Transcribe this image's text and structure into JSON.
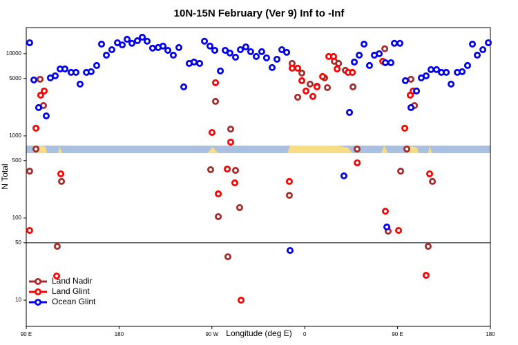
{
  "chart_data": {
    "type": "scatter",
    "title": "10N-15N February (Ver 9)   Inf to -Inf",
    "x_label": "Longitude (deg E)",
    "y_label": "N Total",
    "y_scale": "log",
    "xlim": [
      90,
      540
    ],
    "ylim": [
      4.8,
      20800
    ],
    "xticks": [
      {
        "value": 90,
        "label": "90 E"
      },
      180,
      {
        "value": 270,
        "label": "90 W"
      },
      {
        "value": 360,
        "label": "0"
      },
      {
        "value": 450,
        "label": "90 E"
      },
      {
        "value": 540,
        "label": "180"
      }
    ],
    "yticks": [
      10,
      50,
      100,
      500,
      1000,
      5000,
      10000
    ],
    "hline": 50,
    "legend": "lower left",
    "series": [
      {
        "name": "Land Nadir",
        "color": "#a52a2a",
        "x": [
          93.3,
          99.4,
          103.4,
          106.7,
          120.1,
          124.2,
          268.8,
          273.5,
          276.2,
          285.5,
          288.2,
          292.9,
          296.9,
          345.1,
          347.8,
          353.2,
          357.2,
          365.2,
          371.9,
          379.3,
          382.0,
          388.7,
          392.8,
          399.4,
          406.8,
          410.8,
          437.6,
          440.9,
          453.0,
          459.0,
          463.0,
          466.4,
          479.7,
          483.8
        ],
        "values": [
          372,
          692,
          4890,
          2340,
          45.2,
          279,
          388,
          2630,
          104,
          33.8,
          1210,
          380,
          134,
          189,
          7620,
          2960,
          5820,
          4270,
          4030,
          5080,
          3870,
          8090,
          7620,
          6280,
          3950,
          692,
          11500,
          69.2,
          372,
          692,
          4890,
          2340,
          45.2,
          279
        ]
      },
      {
        "name": "Land Glint",
        "color": "#ff0000",
        "x": [
          93.3,
          99.4,
          104.0,
          107.4,
          119.5,
          123.5,
          270.1,
          273.5,
          276.2,
          284.9,
          288.2,
          292.2,
          298.3,
          345.1,
          347.8,
          353.2,
          357.2,
          361.2,
          367.9,
          371.9,
          377.3,
          383.3,
          388.0,
          391.4,
          402.1,
          406.2,
          410.9,
          435.6,
          438.2,
          451.0,
          457.0,
          462.3,
          465.0,
          477.7,
          481.1
        ],
        "values": [
          70.6,
          1240,
          3130,
          3520,
          19.7,
          345,
          1100,
          4440,
          197,
          395,
          840,
          268,
          10,
          279,
          6670,
          6670,
          4700,
          3520,
          3020,
          3950,
          5280,
          9250,
          9250,
          6530,
          5930,
          5930,
          470,
          8090,
          121,
          70.6,
          1240,
          3130,
          3520,
          20.1,
          345
        ]
      },
      {
        "name": "Ocean Glint",
        "color": "#0000ee",
        "x": [
          93.3,
          97.4,
          102.0,
          109.4,
          113.4,
          118.1,
          122.8,
          127.5,
          133.5,
          138.2,
          142.2,
          148.3,
          152.9,
          158.3,
          163.0,
          167.7,
          173.0,
          178.4,
          183.1,
          187.8,
          192.5,
          197.8,
          202.5,
          207.2,
          212.5,
          217.9,
          222.6,
          227.3,
          232.6,
          238.0,
          242.7,
          248.0,
          252.7,
          258.1,
          262.8,
          268.1,
          272.8,
          278.2,
          282.9,
          287.5,
          292.9,
          297.6,
          302.9,
          307.6,
          313.0,
          318.3,
          323.0,
          328.4,
          333.1,
          337.8,
          342.5,
          345.8,
          398.0,
          403.4,
          408.1,
          412.8,
          417.5,
          422.8,
          427.5,
          432.2,
          438.2,
          443.6,
          446.9,
          452.3,
          457.6,
          439.6,
          463.0,
          468.4,
          473.0,
          477.7,
          482.4,
          487.8,
          492.5,
          497.2,
          501.9,
          507.9,
          512.6,
          517.9,
          522.6,
          527.3,
          532.7,
          538.0
        ],
        "values": [
          13600,
          4800,
          2210,
          1750,
          5080,
          5380,
          6530,
          6530,
          5930,
          5930,
          4270,
          5930,
          6050,
          7190,
          13100,
          9610,
          11200,
          13600,
          12800,
          15000,
          13400,
          14400,
          15900,
          14200,
          11700,
          11900,
          12400,
          11000,
          9610,
          11900,
          3950,
          7620,
          7920,
          7620,
          14200,
          12400,
          11000,
          6170,
          11000,
          10200,
          9080,
          11200,
          12100,
          10600,
          9250,
          10600,
          8910,
          6790,
          8570,
          11200,
          10400,
          40.3,
          326,
          1930,
          7920,
          9610,
          13100,
          7190,
          9610,
          10000,
          7780,
          7780,
          13400,
          13400,
          4700,
          77.8,
          2210,
          3520,
          5080,
          5380,
          6410,
          6410,
          5930,
          5930,
          4270,
          5930,
          6050,
          7190,
          13100,
          9610,
          11200,
          13600
        ]
      }
    ]
  }
}
